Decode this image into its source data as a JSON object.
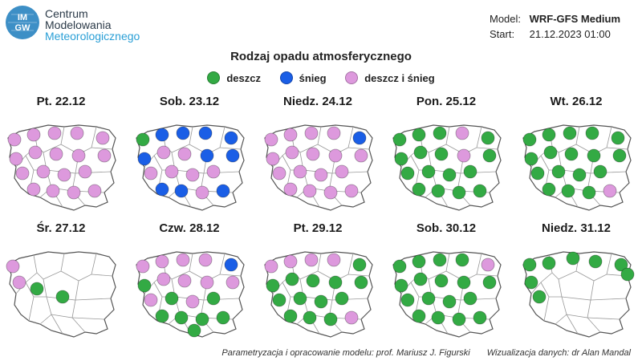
{
  "header": {
    "logo_text": "IMGW",
    "org_line1": "Centrum",
    "org_line2": "Modelowania",
    "org_line3": "Meteorologicznego",
    "model_label": "Model:",
    "model_value": "WRF-GFS Medium",
    "start_label": "Start:",
    "start_value": "21.12.2023 01:00"
  },
  "title": "Rodzaj opadu atmosferycznego",
  "legend": [
    {
      "label": "deszcz",
      "color": "#33aa44"
    },
    {
      "label": "śnieg",
      "color": "#1a5ee6"
    },
    {
      "label": "deszcz i śnieg",
      "color": "#dd99dd"
    }
  ],
  "days": [
    {
      "label": "Pt. 22.12",
      "points": [
        "P",
        "P",
        "P",
        "P",
        "P",
        "P",
        "P",
        "P",
        "P",
        "P",
        "P",
        "P",
        "P",
        "P",
        "P",
        "P",
        "P",
        "P"
      ]
    },
    {
      "label": "Sob. 23.12",
      "points": [
        "R",
        "S",
        "S",
        "S",
        "S",
        "S",
        "P",
        "P",
        "S",
        "S",
        "P",
        "P",
        "P",
        "P",
        "S",
        "S",
        "P",
        "S"
      ]
    },
    {
      "label": "Niedz. 24.12",
      "points": [
        "P",
        "P",
        "P",
        "P",
        "S",
        "P",
        "P",
        "P",
        "P",
        "P",
        "P",
        "P",
        "P",
        "P",
        "P",
        "P",
        "P",
        "P"
      ]
    },
    {
      "label": "Pon. 25.12",
      "points": [
        "R",
        "R",
        "R",
        "P",
        "R",
        "R",
        "R",
        "R",
        "P",
        "R",
        "R",
        "R",
        "R",
        "R",
        "R",
        "R",
        "R",
        "R"
      ]
    },
    {
      "label": "Wt. 26.12",
      "points": [
        "R",
        "R",
        "R",
        "R",
        "R",
        "R",
        "R",
        "R",
        "R",
        "R",
        "R",
        "R",
        "R",
        "R",
        "R",
        "R",
        "R",
        "P"
      ]
    },
    {
      "label": "Śr. 27.12",
      "points": [
        "P",
        "P",
        "R",
        "R"
      ]
    },
    {
      "label": "Czw. 28.12",
      "points": [
        "P",
        "P",
        "P",
        "P",
        "S",
        "R",
        "P",
        "P",
        "P",
        "P",
        "P",
        "R",
        "P",
        "R",
        "R",
        "R",
        "R",
        "R",
        "R"
      ]
    },
    {
      "label": "Pt. 29.12",
      "points": [
        "P",
        "P",
        "P",
        "P",
        "R",
        "R",
        "R",
        "R",
        "R",
        "R",
        "R",
        "R",
        "R",
        "R",
        "R",
        "R",
        "R",
        "P"
      ]
    },
    {
      "label": "Sob. 30.12",
      "points": [
        "R",
        "R",
        "R",
        "R",
        "P",
        "R",
        "R",
        "R",
        "R",
        "R",
        "R",
        "R",
        "R",
        "R",
        "R",
        "R",
        "R",
        "R"
      ]
    },
    {
      "label": "Niedz. 31.12",
      "points": [
        "R",
        "R",
        "R",
        "R",
        "R",
        "R",
        "R",
        "R"
      ]
    }
  ],
  "footer": {
    "credit_model": "Parametryzacja i opracowanie modelu: prof. Mariusz J. Figurski",
    "credit_viz": "Wizualizacja danych: dr Alan Mandal"
  }
}
